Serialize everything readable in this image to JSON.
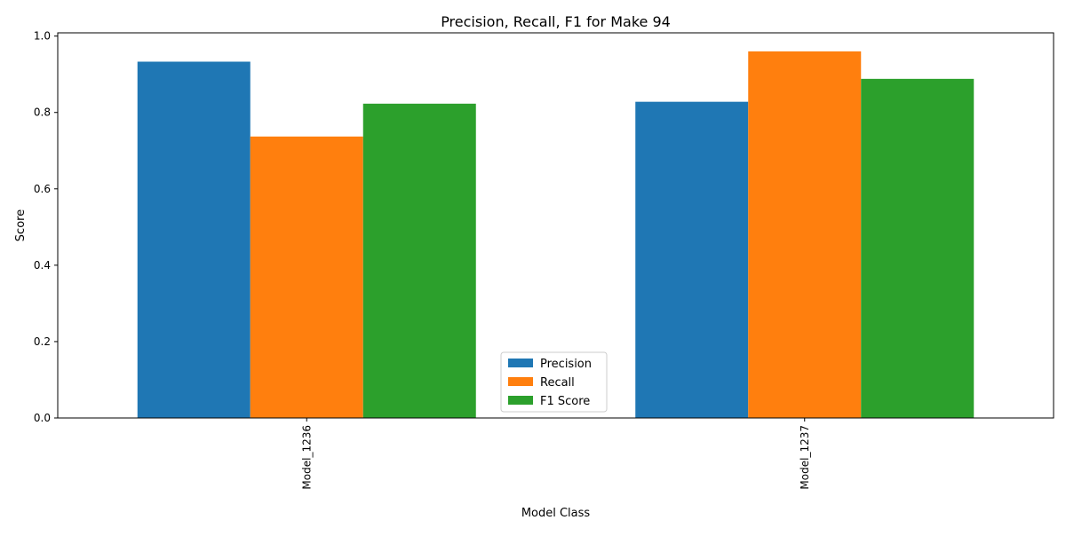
{
  "chart_data": {
    "type": "bar",
    "title": "Precision, Recall, F1 for Make 94",
    "xlabel": "Model Class",
    "ylabel": "Score",
    "categories": [
      "Model_1236",
      "Model_1237"
    ],
    "series": [
      {
        "name": "Precision",
        "values": [
          0.933,
          0.828
        ],
        "color": "#1f77b4"
      },
      {
        "name": "Recall",
        "values": [
          0.737,
          0.96
        ],
        "color": "#ff7f0e"
      },
      {
        "name": "F1 Score",
        "values": [
          0.823,
          0.888
        ],
        "color": "#2ca02c"
      }
    ],
    "ylim": [
      0,
      1.0
    ],
    "yticks": [
      0.0,
      0.2,
      0.4,
      0.6,
      0.8,
      1.0
    ],
    "ytick_labels": [
      "0.0",
      "0.2",
      "0.4",
      "0.6",
      "0.8",
      "1.0"
    ],
    "legend_position": "lower-center",
    "grid": false
  }
}
